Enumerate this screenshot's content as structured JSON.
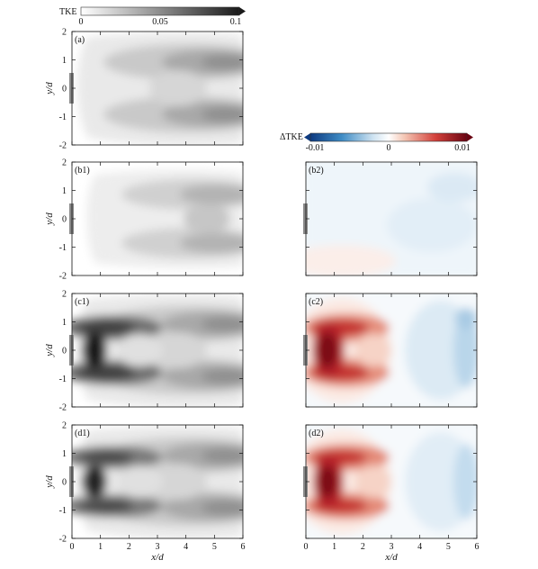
{
  "colorbars": {
    "tke": {
      "label": "TKE",
      "ticks": [
        "0",
        "0.05",
        "0.1"
      ],
      "range": [
        0,
        0.1
      ],
      "colors": [
        "#ffffff",
        "#1a1a1a"
      ]
    },
    "delta_tke": {
      "label": "ΔTKE",
      "ticks": [
        "-0.01",
        "0",
        "0.01"
      ],
      "range": [
        -0.01,
        0.01
      ],
      "colors": [
        "#0d3a80",
        "#3f8cc5",
        "#cfe3f1",
        "#ffffff",
        "#f4c7b5",
        "#d3413b",
        "#6a0412"
      ]
    }
  },
  "axes": {
    "xlabel": "x/d",
    "ylabel": "y/d",
    "xticks": [
      "0",
      "1",
      "2",
      "3",
      "4",
      "5",
      "6"
    ],
    "yticks": [
      "2",
      "1",
      "0",
      "-1",
      "-2"
    ],
    "xlim": [
      0,
      6
    ],
    "ylim": [
      -2,
      2
    ]
  },
  "panels": [
    {
      "label": "(a)",
      "field": "tke",
      "case": "a"
    },
    {
      "label": "(b1)",
      "field": "tke",
      "case": "b"
    },
    {
      "label": "(b2)",
      "field": "delta_tke",
      "case": "b"
    },
    {
      "label": "(c1)",
      "field": "tke",
      "case": "c"
    },
    {
      "label": "(c2)",
      "field": "delta_tke",
      "case": "c"
    },
    {
      "label": "(d1)",
      "field": "tke",
      "case": "d"
    },
    {
      "label": "(d2)",
      "field": "delta_tke",
      "case": "d"
    }
  ]
}
